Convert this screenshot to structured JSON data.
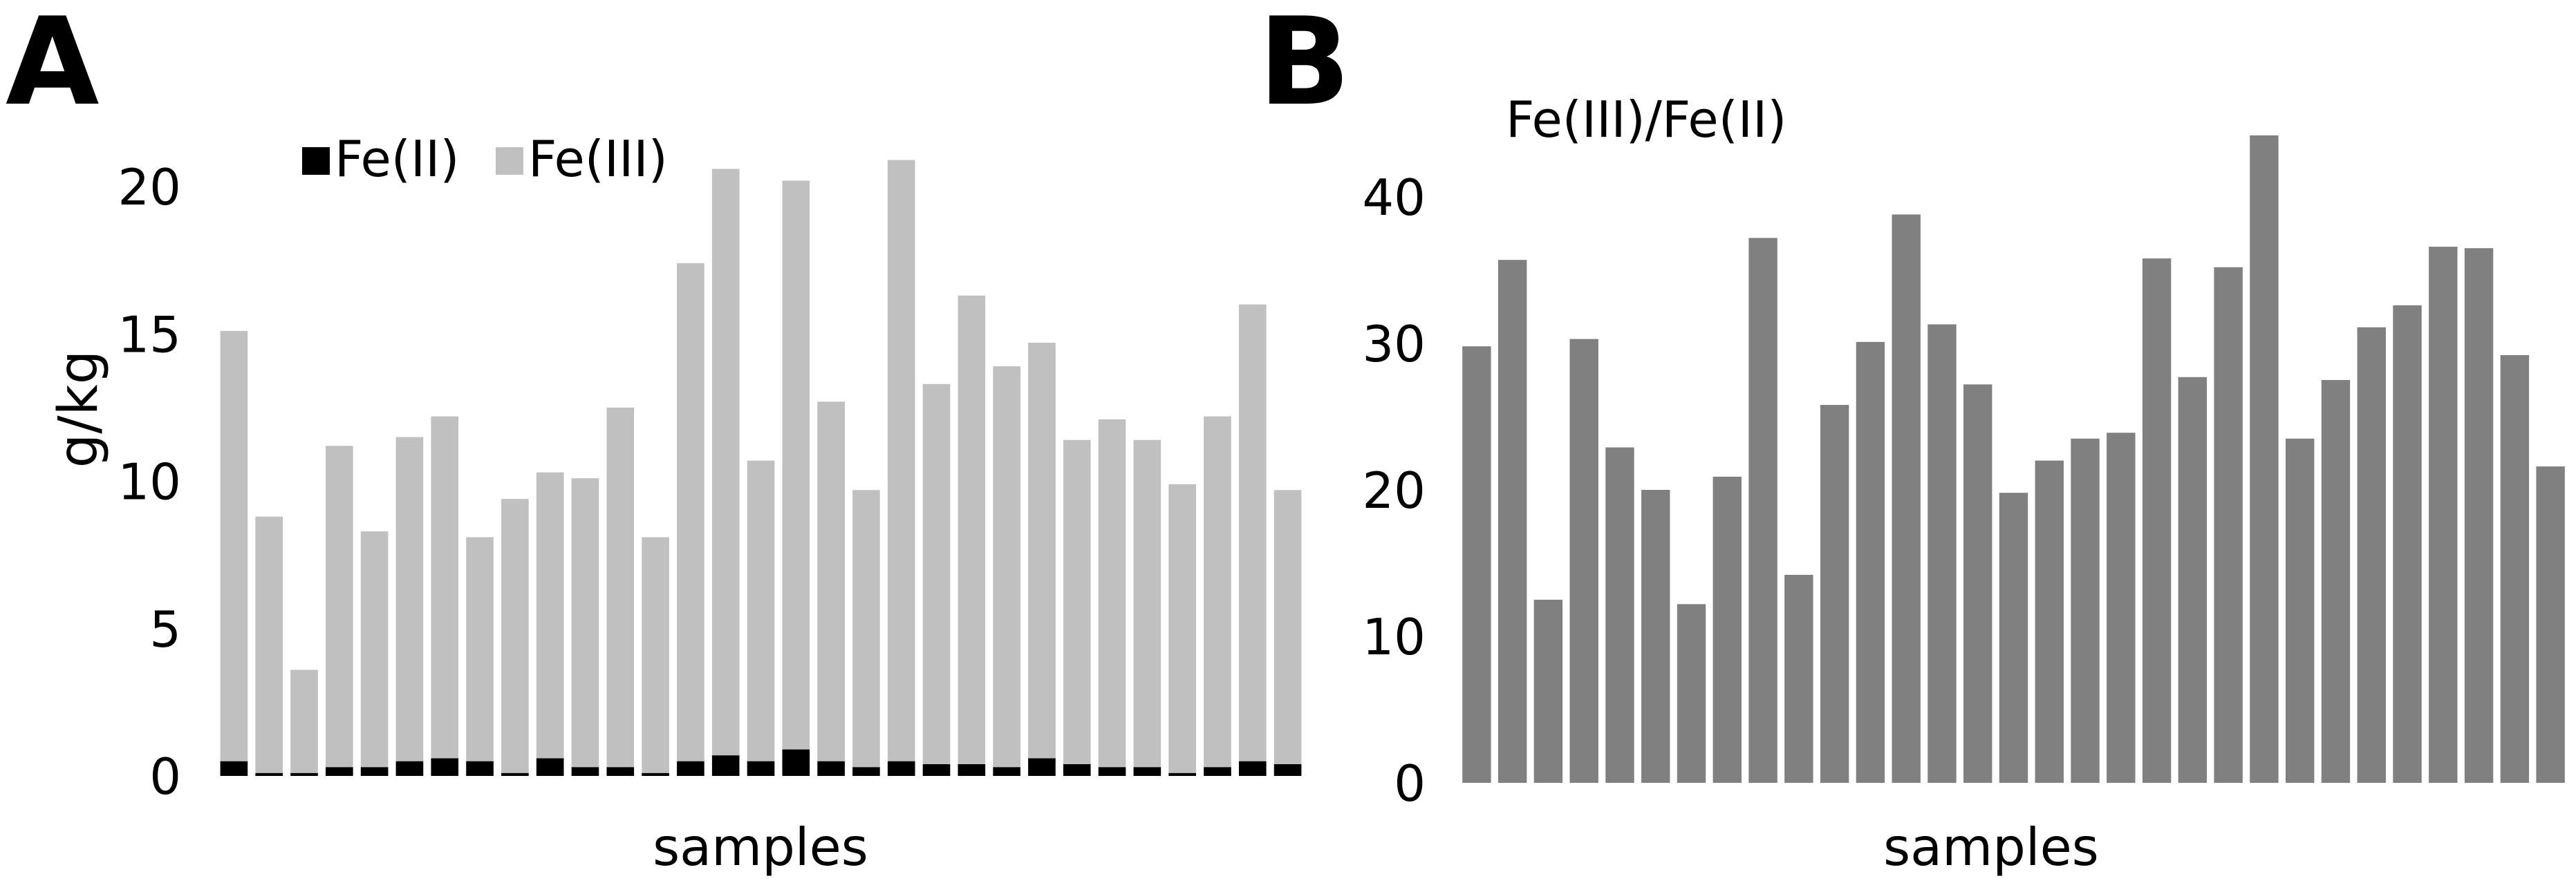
{
  "chart_data": [
    {
      "panel_label": "A",
      "type": "bar",
      "stacked": true,
      "xlabel": "samples",
      "ylabel": "g/kg",
      "ylim": [
        0,
        20
      ],
      "yticks": [
        0,
        5,
        10,
        15,
        20
      ],
      "legend_position": "top-left",
      "colors": {
        "Fe(II)": "#000000",
        "Fe(III)": "#c0c0c0"
      },
      "series": [
        {
          "name": "Fe(II)",
          "values": [
            0.5,
            0.1,
            0.1,
            0.3,
            0.3,
            0.5,
            0.6,
            0.5,
            0.1,
            0.6,
            0.3,
            0.3,
            0.1,
            0.5,
            0.7,
            0.5,
            0.9,
            0.5,
            0.3,
            0.5,
            0.4,
            0.4,
            0.3,
            0.6,
            0.4,
            0.3,
            0.3,
            0.1,
            0.3,
            0.5,
            0.4
          ]
        },
        {
          "name": "Fe(III)",
          "values": [
            14.6,
            8.7,
            3.5,
            10.9,
            8.0,
            11.0,
            11.6,
            7.6,
            9.3,
            9.7,
            9.8,
            12.2,
            8.0,
            16.9,
            19.9,
            10.2,
            19.3,
            12.2,
            9.4,
            20.4,
            12.9,
            15.9,
            13.6,
            14.1,
            11.0,
            11.8,
            11.1,
            9.8,
            11.9,
            15.5,
            9.3
          ]
        }
      ]
    },
    {
      "panel_label": "B",
      "type": "bar",
      "title": "Fe(III)/Fe(II)",
      "xlabel": "samples",
      "ylim": [
        0,
        40
      ],
      "yticks": [
        0,
        10,
        20,
        30,
        40
      ],
      "colors": {
        "bars": "#808080"
      },
      "values": [
        29.8,
        35.7,
        12.5,
        30.3,
        22.9,
        20.0,
        12.2,
        20.9,
        37.2,
        14.2,
        25.8,
        30.1,
        38.8,
        31.3,
        27.2,
        19.8,
        22.0,
        23.5,
        23.9,
        35.8,
        27.7,
        35.2,
        44.2,
        23.5,
        27.5,
        31.1,
        32.6,
        36.6,
        36.5,
        29.2,
        21.6
      ]
    }
  ]
}
